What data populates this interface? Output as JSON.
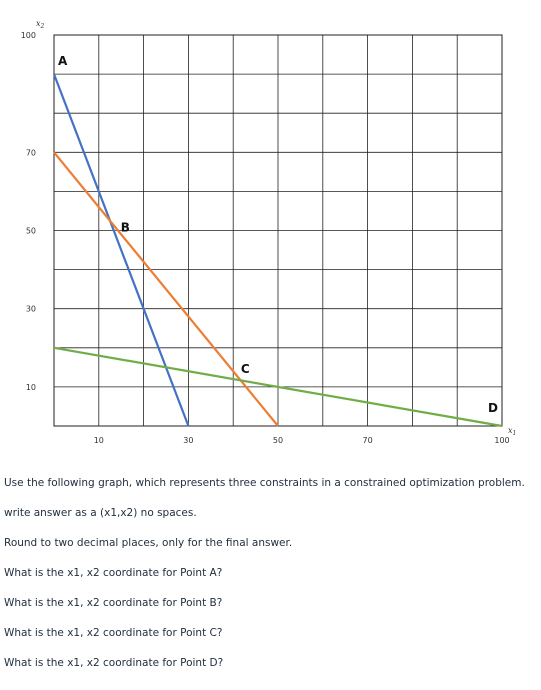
{
  "chart_data": {
    "type": "line",
    "xlabel": "x",
    "xlabel_sub": "1",
    "ylabel": "x",
    "ylabel_sub": "2",
    "xlim": [
      0,
      100
    ],
    "ylim": [
      0,
      100
    ],
    "grid": true,
    "xticks": [
      10,
      30,
      50,
      70,
      100
    ],
    "yticks": [
      100,
      70,
      50,
      30,
      10
    ],
    "series": [
      {
        "color": "#4472c4",
        "points": [
          [
            0,
            90
          ],
          [
            30,
            0
          ]
        ]
      },
      {
        "color": "#ed7d31",
        "points": [
          [
            0,
            70
          ],
          [
            50,
            0
          ]
        ]
      },
      {
        "color": "#70ad47",
        "points": [
          [
            0,
            20
          ],
          [
            100,
            0
          ]
        ]
      }
    ],
    "annotations": [
      {
        "text": "A",
        "x": 0,
        "y": 90
      },
      {
        "text": "B",
        "x": 13.33,
        "y": 51.3
      },
      {
        "text": "C",
        "x": 41.5,
        "y": 12
      },
      {
        "text": "D",
        "x": 100,
        "y": 0
      }
    ]
  },
  "text": {
    "intro": "Use the following graph, which represents three constraints in a constrained optimization problem.",
    "format": "write answer as a (x1,x2) no spaces.",
    "rounding": "Round to two decimal places, only for the final answer.",
    "q_a": "What is the x1, x2 coordinate for Point A?",
    "q_b": "What is the x1, x2 coordinate for Point B?",
    "q_c": "What is the x1, x2 coordinate for Point C?",
    "q_d": "What is the x1, x2 coordinate for Point D?"
  }
}
